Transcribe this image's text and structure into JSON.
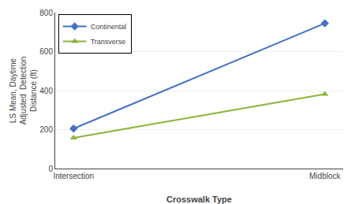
{
  "chart_data": {
    "type": "line",
    "categories": [
      "Intersection",
      "Midblock"
    ],
    "series": [
      {
        "name": "Continental",
        "color": "#4472C4",
        "marker": "diamond",
        "values": [
          205,
          745
        ]
      },
      {
        "name": "Transverse",
        "color": "#8DB33A",
        "marker": "triangle-up",
        "values": [
          158,
          382
        ]
      }
    ],
    "x_label": "Crosswalk Type",
    "y_label": "LS Mean, Daytime\nAdjusted  Detection\nDistance (ft)",
    "ylim": [
      0,
      800
    ],
    "yticks": [
      0,
      200,
      400,
      600,
      800
    ],
    "grid": true,
    "legend": "upper left"
  }
}
